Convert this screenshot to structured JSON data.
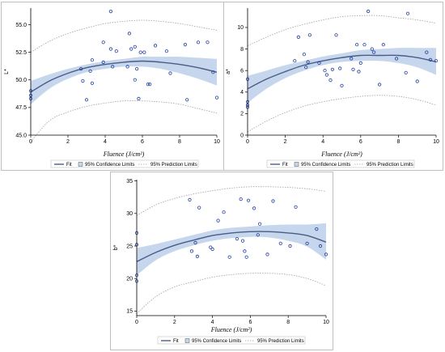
{
  "colors": {
    "band": "#c6d6ec",
    "fit": "#4a5c87",
    "marker": "#1f3c9c",
    "pred": "#a0a0a0"
  },
  "chart_data": [
    {
      "type": "scatter",
      "ylabel": "L*",
      "xlabel": "Fluence (J/cm²)",
      "xlim": [
        0,
        10
      ],
      "ylim": [
        45,
        56.5
      ],
      "xticks": [
        "0",
        "2",
        "4",
        "6",
        "8",
        "10"
      ],
      "yticks": [
        "45.0",
        "47.5",
        "50.0",
        "52.5",
        "55.0"
      ],
      "ytick_values": [
        45,
        47.5,
        50,
        52.5,
        55
      ],
      "legend": {
        "fit": "Fit",
        "conf": "95% Confidence Limits",
        "pred": "95% Prediction Limits"
      },
      "fit": {
        "x": [
          0,
          1,
          2,
          3,
          4,
          5,
          6,
          7,
          8,
          9,
          10
        ],
        "y": [
          48.9,
          49.9,
          50.6,
          51.1,
          51.4,
          51.6,
          51.7,
          51.6,
          51.4,
          51.1,
          50.7
        ]
      },
      "conf_upper": [
        49.9,
        50.5,
        51.0,
        51.4,
        51.7,
        51.9,
        52.1,
        52.1,
        52.1,
        52.0,
        51.9
      ],
      "conf_lower": [
        47.8,
        49.2,
        50.1,
        50.7,
        51.0,
        51.2,
        51.2,
        51.0,
        50.6,
        50.1,
        49.5
      ],
      "pred_upper": [
        52.5,
        53.5,
        54.2,
        54.7,
        55.1,
        55.3,
        55.4,
        55.3,
        55.1,
        54.8,
        54.5
      ],
      "pred_lower": [
        44.4,
        46.3,
        47.1,
        47.6,
        47.9,
        48.1,
        48.1,
        48.0,
        47.8,
        47.4,
        47.0
      ],
      "points": [
        [
          0,
          49.0
        ],
        [
          0,
          48.6
        ],
        [
          0,
          48.3
        ],
        [
          2.7,
          51.0
        ],
        [
          2.8,
          49.9
        ],
        [
          3.0,
          48.2
        ],
        [
          3.2,
          50.8
        ],
        [
          3.3,
          51.8
        ],
        [
          3.3,
          49.7
        ],
        [
          3.9,
          51.6
        ],
        [
          3.9,
          53.4
        ],
        [
          4.3,
          56.2
        ],
        [
          4.3,
          52.8
        ],
        [
          4.4,
          51.2
        ],
        [
          4.6,
          52.6
        ],
        [
          5.2,
          51.2
        ],
        [
          5.3,
          54.2
        ],
        [
          5.4,
          52.8
        ],
        [
          5.6,
          50.0
        ],
        [
          5.6,
          53.0
        ],
        [
          5.7,
          51.0
        ],
        [
          5.8,
          48.3
        ],
        [
          5.9,
          52.5
        ],
        [
          6.1,
          52.5
        ],
        [
          6.3,
          49.6
        ],
        [
          6.4,
          49.6
        ],
        [
          6.7,
          53.1
        ],
        [
          7.3,
          52.6
        ],
        [
          7.5,
          50.6
        ],
        [
          8.3,
          53.2
        ],
        [
          8.4,
          48.2
        ],
        [
          9.0,
          53.4
        ],
        [
          9.5,
          53.4
        ],
        [
          9.8,
          50.7
        ],
        [
          10.0,
          48.4
        ]
      ]
    },
    {
      "type": "scatter",
      "ylabel": "a*",
      "xlabel": "Fluence (J/cm²)",
      "xlim": [
        0,
        10
      ],
      "ylim": [
        0,
        11.8
      ],
      "xticks": [
        "0",
        "2",
        "4",
        "6",
        "8",
        "10"
      ],
      "yticks": [
        "0",
        "2",
        "4",
        "6",
        "8",
        "10"
      ],
      "ytick_values": [
        0,
        2,
        4,
        6,
        8,
        10
      ],
      "legend": {
        "fit": "Fit",
        "conf": "95% Confidence Limits",
        "pred": "95% Prediction Limits"
      },
      "fit": {
        "x": [
          0,
          1,
          2,
          3,
          4,
          5,
          6,
          7,
          8,
          9,
          10
        ],
        "y": [
          4.3,
          5.2,
          5.9,
          6.5,
          6.9,
          7.2,
          7.4,
          7.4,
          7.4,
          7.2,
          6.8
        ]
      },
      "conf_upper": [
        5.5,
        6.0,
        6.5,
        6.9,
        7.3,
        7.6,
        7.9,
        8.0,
        8.1,
        8.1,
        8.1
      ],
      "conf_lower": [
        3.0,
        4.3,
        5.3,
        6.0,
        6.5,
        6.8,
        6.9,
        6.9,
        6.7,
        6.3,
        5.6
      ],
      "pred_upper": [
        8.3,
        9.1,
        9.8,
        10.3,
        10.7,
        11.0,
        11.1,
        11.1,
        10.9,
        10.7,
        10.4
      ],
      "pred_lower": [
        0.3,
        1.3,
        2.1,
        2.7,
        3.1,
        3.4,
        3.6,
        3.7,
        3.6,
        3.3,
        2.8
      ],
      "points": [
        [
          0,
          5.2
        ],
        [
          0,
          3.1
        ],
        [
          0,
          2.8
        ],
        [
          0,
          2.6
        ],
        [
          2.5,
          6.9
        ],
        [
          2.7,
          9.1
        ],
        [
          3.0,
          7.5
        ],
        [
          3.1,
          6.3
        ],
        [
          3.2,
          6.8
        ],
        [
          3.3,
          9.3
        ],
        [
          3.8,
          6.7
        ],
        [
          4.1,
          6.0
        ],
        [
          4.2,
          5.6
        ],
        [
          4.4,
          5.1
        ],
        [
          4.5,
          6.1
        ],
        [
          4.7,
          9.3
        ],
        [
          4.9,
          6.2
        ],
        [
          5.0,
          4.6
        ],
        [
          5.5,
          7.1
        ],
        [
          5.6,
          6.1
        ],
        [
          5.8,
          8.4
        ],
        [
          5.9,
          5.9
        ],
        [
          6.0,
          6.7
        ],
        [
          6.2,
          8.4
        ],
        [
          6.4,
          11.5
        ],
        [
          6.6,
          8.0
        ],
        [
          6.7,
          7.7
        ],
        [
          7.0,
          4.7
        ],
        [
          7.2,
          8.4
        ],
        [
          7.9,
          7.1
        ],
        [
          8.4,
          5.8
        ],
        [
          8.5,
          11.3
        ],
        [
          9.0,
          5.0
        ],
        [
          9.5,
          7.7
        ],
        [
          9.7,
          7.0
        ],
        [
          10.0,
          6.9
        ]
      ]
    },
    {
      "type": "scatter",
      "ylabel": "b*",
      "xlabel": "Fluence (J/cm²)",
      "xlim": [
        0,
        10
      ],
      "ylim": [
        14.3,
        35.2
      ],
      "xticks": [
        "0",
        "2",
        "4",
        "6",
        "8",
        "10"
      ],
      "yticks": [
        "15",
        "20",
        "25",
        "30",
        "35"
      ],
      "ytick_values": [
        15,
        20,
        25,
        30,
        35
      ],
      "legend": {
        "fit": "Fit",
        "conf": "95% Confidence Limits",
        "pred": "95% Prediction Limits"
      },
      "fit": {
        "x": [
          0,
          1,
          2,
          3,
          4,
          5,
          6,
          7,
          8,
          9,
          10
        ],
        "y": [
          22.6,
          24.0,
          25.1,
          25.9,
          26.6,
          27.0,
          27.2,
          27.2,
          27.0,
          26.6,
          25.6
        ]
      },
      "conf_upper": [
        24.7,
        25.3,
        26.0,
        26.7,
        27.4,
        27.8,
        28.0,
        28.2,
        28.3,
        28.3,
        28.5
      ],
      "conf_lower": [
        20.5,
        22.8,
        24.2,
        25.1,
        25.8,
        26.2,
        26.4,
        26.3,
        25.8,
        24.9,
        22.9
      ],
      "pred_upper": [
        29.7,
        31.3,
        32.3,
        33.0,
        33.5,
        33.9,
        34.1,
        34.1,
        34.0,
        33.8,
        33.4
      ],
      "pred_lower": [
        14.6,
        17.2,
        18.7,
        19.5,
        20.2,
        20.6,
        20.8,
        20.8,
        20.6,
        20.0,
        18.9
      ],
      "points": [
        [
          0,
          27.0
        ],
        [
          0,
          25.2
        ],
        [
          0,
          20.5
        ],
        [
          0,
          19.6
        ],
        [
          2.8,
          32.1
        ],
        [
          2.9,
          24.2
        ],
        [
          3.1,
          25.5
        ],
        [
          3.2,
          23.4
        ],
        [
          3.3,
          30.9
        ],
        [
          3.9,
          24.8
        ],
        [
          4.0,
          24.5
        ],
        [
          4.3,
          28.9
        ],
        [
          4.6,
          30.2
        ],
        [
          4.9,
          23.3
        ],
        [
          5.3,
          26.1
        ],
        [
          5.5,
          32.2
        ],
        [
          5.6,
          25.8
        ],
        [
          5.7,
          24.2
        ],
        [
          5.8,
          23.3
        ],
        [
          5.9,
          32.0
        ],
        [
          6.2,
          30.8
        ],
        [
          6.4,
          26.7
        ],
        [
          6.5,
          28.4
        ],
        [
          6.9,
          23.7
        ],
        [
          7.2,
          31.9
        ],
        [
          7.6,
          25.4
        ],
        [
          8.1,
          25.0
        ],
        [
          8.4,
          31.0
        ],
        [
          9.0,
          25.4
        ],
        [
          9.5,
          27.6
        ],
        [
          9.7,
          25.0
        ],
        [
          10.0,
          23.7
        ]
      ]
    }
  ]
}
